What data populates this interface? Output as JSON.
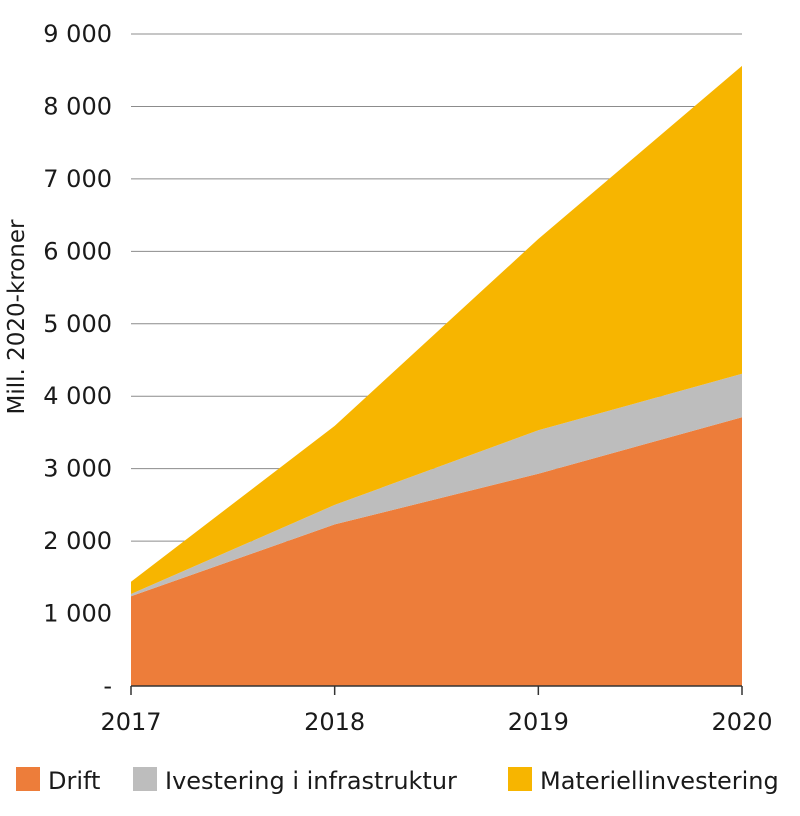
{
  "chart_data": {
    "type": "area",
    "stacked": true,
    "x": [
      "2017",
      "2018",
      "2019",
      "2020"
    ],
    "ylabel": "Mill. 2020-kroner",
    "ylim": [
      0,
      9000
    ],
    "y_ticks": [
      {
        "value": 0,
        "label": "-"
      },
      {
        "value": 1000,
        "label": "1 000"
      },
      {
        "value": 2000,
        "label": "2 000"
      },
      {
        "value": 3000,
        "label": "3 000"
      },
      {
        "value": 4000,
        "label": "4 000"
      },
      {
        "value": 5000,
        "label": "5 000"
      },
      {
        "value": 6000,
        "label": "6 000"
      },
      {
        "value": 7000,
        "label": "7 000"
      },
      {
        "value": 8000,
        "label": "8 000"
      },
      {
        "value": 9000,
        "label": "9 000"
      }
    ],
    "grid": true,
    "legend_position": "bottom",
    "series": [
      {
        "name": "Drift",
        "color": "#ed7d3a",
        "values": [
          1240,
          2230,
          2930,
          3710
        ]
      },
      {
        "name": "Ivestering i infrastruktur",
        "color": "#bdbdbd",
        "values": [
          30,
          270,
          600,
          600
        ]
      },
      {
        "name": "Materiellinvestering",
        "color": "#f7b500",
        "values": [
          170,
          1090,
          2640,
          4250
        ]
      }
    ]
  }
}
